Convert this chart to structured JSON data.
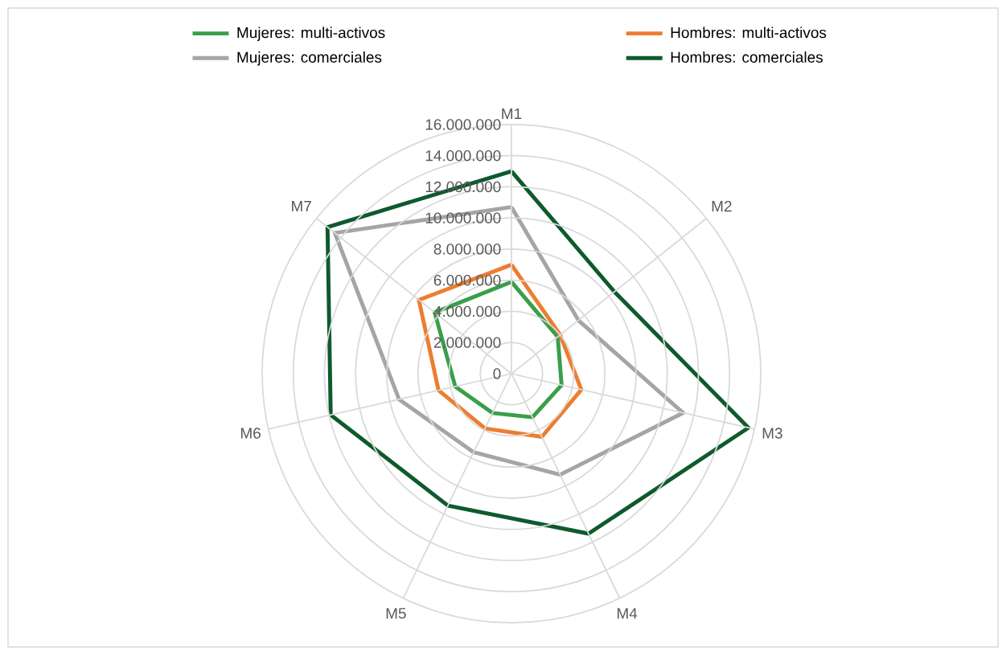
{
  "chart_data": {
    "type": "radar",
    "categories": [
      "M1",
      "M2",
      "M3",
      "M4",
      "M5",
      "M6",
      "M7"
    ],
    "series": [
      {
        "name": "Mujeres: multi-activos",
        "color": "#3a9e4a",
        "values": [
          5900000,
          3800000,
          3300000,
          3100000,
          2800000,
          3700000,
          6300000
        ]
      },
      {
        "name": "Hombres: multi-activos",
        "color": "#ed7d31",
        "values": [
          7000000,
          4000000,
          4600000,
          4500000,
          3900000,
          4800000,
          7600000
        ]
      },
      {
        "name": "Mujeres: comerciales",
        "color": "#a5a5a5",
        "values": [
          10700000,
          5500000,
          11300000,
          7200000,
          5600000,
          7400000,
          14500000
        ]
      },
      {
        "name": "Hombres: comerciales",
        "color": "#0e5a2d",
        "values": [
          13000000,
          8450000,
          15600000,
          11400000,
          9400000,
          11900000,
          15100000
        ]
      }
    ],
    "ylim": [
      0,
      16000000
    ],
    "yticks": [
      {
        "value": 0,
        "label": "0"
      },
      {
        "value": 2000000,
        "label": "2.000.000"
      },
      {
        "value": 4000000,
        "label": "4.000.000"
      },
      {
        "value": 6000000,
        "label": "6.000.000"
      },
      {
        "value": 8000000,
        "label": "8.000.000"
      },
      {
        "value": 10000000,
        "label": "10.000.000"
      },
      {
        "value": 12000000,
        "label": "12.000.000"
      },
      {
        "value": 14000000,
        "label": "14.000.000"
      },
      {
        "value": 16000000,
        "label": "16.000.000"
      }
    ],
    "grid": true,
    "legend": "top"
  }
}
